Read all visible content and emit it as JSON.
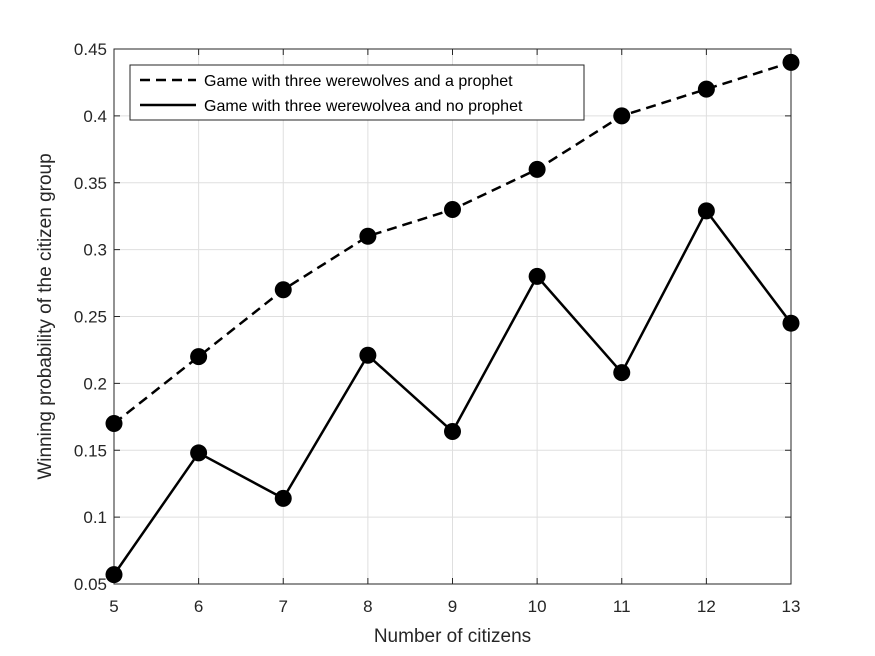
{
  "chart_data": {
    "type": "line",
    "title": "",
    "xlabel": "Number of citizens",
    "ylabel": "Winning probability of the citizen group",
    "x": [
      5,
      6,
      7,
      8,
      9,
      10,
      11,
      12,
      13
    ],
    "xlim": [
      5,
      13
    ],
    "ylim": [
      0.05,
      0.45
    ],
    "xticks": [
      "5",
      "6",
      "7",
      "8",
      "9",
      "10",
      "11",
      "12",
      "13"
    ],
    "yticks": [
      "0.05",
      "0.1",
      "0.15",
      "0.2",
      "0.25",
      "0.3",
      "0.35",
      "0.4",
      "0.45"
    ],
    "grid": true,
    "legend_position": "top-left",
    "series": [
      {
        "name": "Game with three werewolves and a prophet",
        "line_style": "dashed",
        "color": "#000000",
        "values": [
          0.17,
          0.22,
          0.27,
          0.31,
          0.33,
          0.36,
          0.4,
          0.42,
          0.44
        ]
      },
      {
        "name": "Game with three werewolvea and no prophet",
        "line_style": "solid",
        "color": "#000000",
        "values": [
          0.057,
          0.148,
          0.114,
          0.221,
          0.164,
          0.28,
          0.208,
          0.329,
          0.245
        ]
      }
    ]
  }
}
